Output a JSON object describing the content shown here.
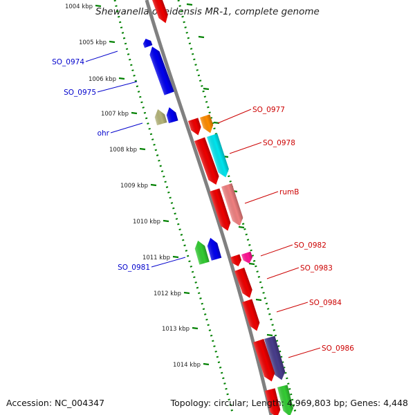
{
  "title": "Shewanella oneidensis MR-1, complete genome",
  "accession": "Accession: NC_004347",
  "summary": "Topology: circular; Length: 4,969,803 bp; Genes: 4,448",
  "colors": {
    "backbone": "#808080",
    "ticks": "#008000",
    "forward_label": "#0000cc",
    "reverse_label": "#cc0000"
  },
  "kbp_ticks": [
    "1004 kbp",
    "1005 kbp",
    "1006 kbp",
    "1007 kbp",
    "1008 kbp",
    "1009 kbp",
    "1010 kbp",
    "1011 kbp",
    "1012 kbp",
    "1013 kbp",
    "1014 kbp"
  ],
  "gene_labels": {
    "SO_0974": "SO_0974",
    "SO_0975": "SO_0975",
    "ohr": "ohr",
    "SO_0981": "SO_0981",
    "SO_0977": "SO_0977",
    "SO_0978": "SO_0978",
    "rumB": "rumB",
    "SO_0982": "SO_0982",
    "SO_0983": "SO_0983",
    "SO_0984": "SO_0984",
    "SO_0986": "SO_0986"
  },
  "features": [
    {
      "name": "SO_0973",
      "strand": "+",
      "track": "inner",
      "color": "#ee0000"
    },
    {
      "name": "SO_0974",
      "strand": "+",
      "track": "inner",
      "color": "#0000ee"
    },
    {
      "name": "SO_0975",
      "strand": "+",
      "track": "inner",
      "color": "#0000ee"
    },
    {
      "name": "ohr",
      "strand": "+",
      "track": "outer",
      "color": "#b5b57a"
    },
    {
      "name": "ohr-cds",
      "strand": "+",
      "track": "inner",
      "color": "#0000ee"
    },
    {
      "name": "SO_0977",
      "strand": "-",
      "track": "outer",
      "color": "#ff8c00"
    },
    {
      "name": "SO_0977-cds",
      "strand": "-",
      "track": "inner",
      "color": "#ee0000"
    },
    {
      "name": "SO_0978",
      "strand": "-",
      "track": "outer",
      "color": "#00e5ee"
    },
    {
      "name": "SO_0978-cds",
      "strand": "-",
      "track": "inner",
      "color": "#ee0000"
    },
    {
      "name": "rumB",
      "strand": "-",
      "track": "outer",
      "color": "#f08080"
    },
    {
      "name": "rumB-cds",
      "strand": "-",
      "track": "inner",
      "color": "#ee0000"
    },
    {
      "name": "SO_0981",
      "strand": "+",
      "track": "outer",
      "color": "#33cc33"
    },
    {
      "name": "SO_0981-cds",
      "strand": "+",
      "track": "inner",
      "color": "#0000ee"
    },
    {
      "name": "SO_0982",
      "strand": "-",
      "track": "outer",
      "color": "#ff1493"
    },
    {
      "name": "SO_0982-cds",
      "strand": "-",
      "track": "inner",
      "color": "#ee0000"
    },
    {
      "name": "SO_0983",
      "strand": "-",
      "track": "inner",
      "color": "#ee0000"
    },
    {
      "name": "SO_0984",
      "strand": "-",
      "track": "inner",
      "color": "#ee0000"
    },
    {
      "name": "SO_0986",
      "strand": "-",
      "track": "outer",
      "color": "#483d8b"
    },
    {
      "name": "SO_0986-cds",
      "strand": "-",
      "track": "inner",
      "color": "#ee0000"
    },
    {
      "name": "SO_0987",
      "strand": "-",
      "track": "outer",
      "color": "#33cc33"
    },
    {
      "name": "SO_0987-cds",
      "strand": "-",
      "track": "inner",
      "color": "#ee0000"
    }
  ]
}
